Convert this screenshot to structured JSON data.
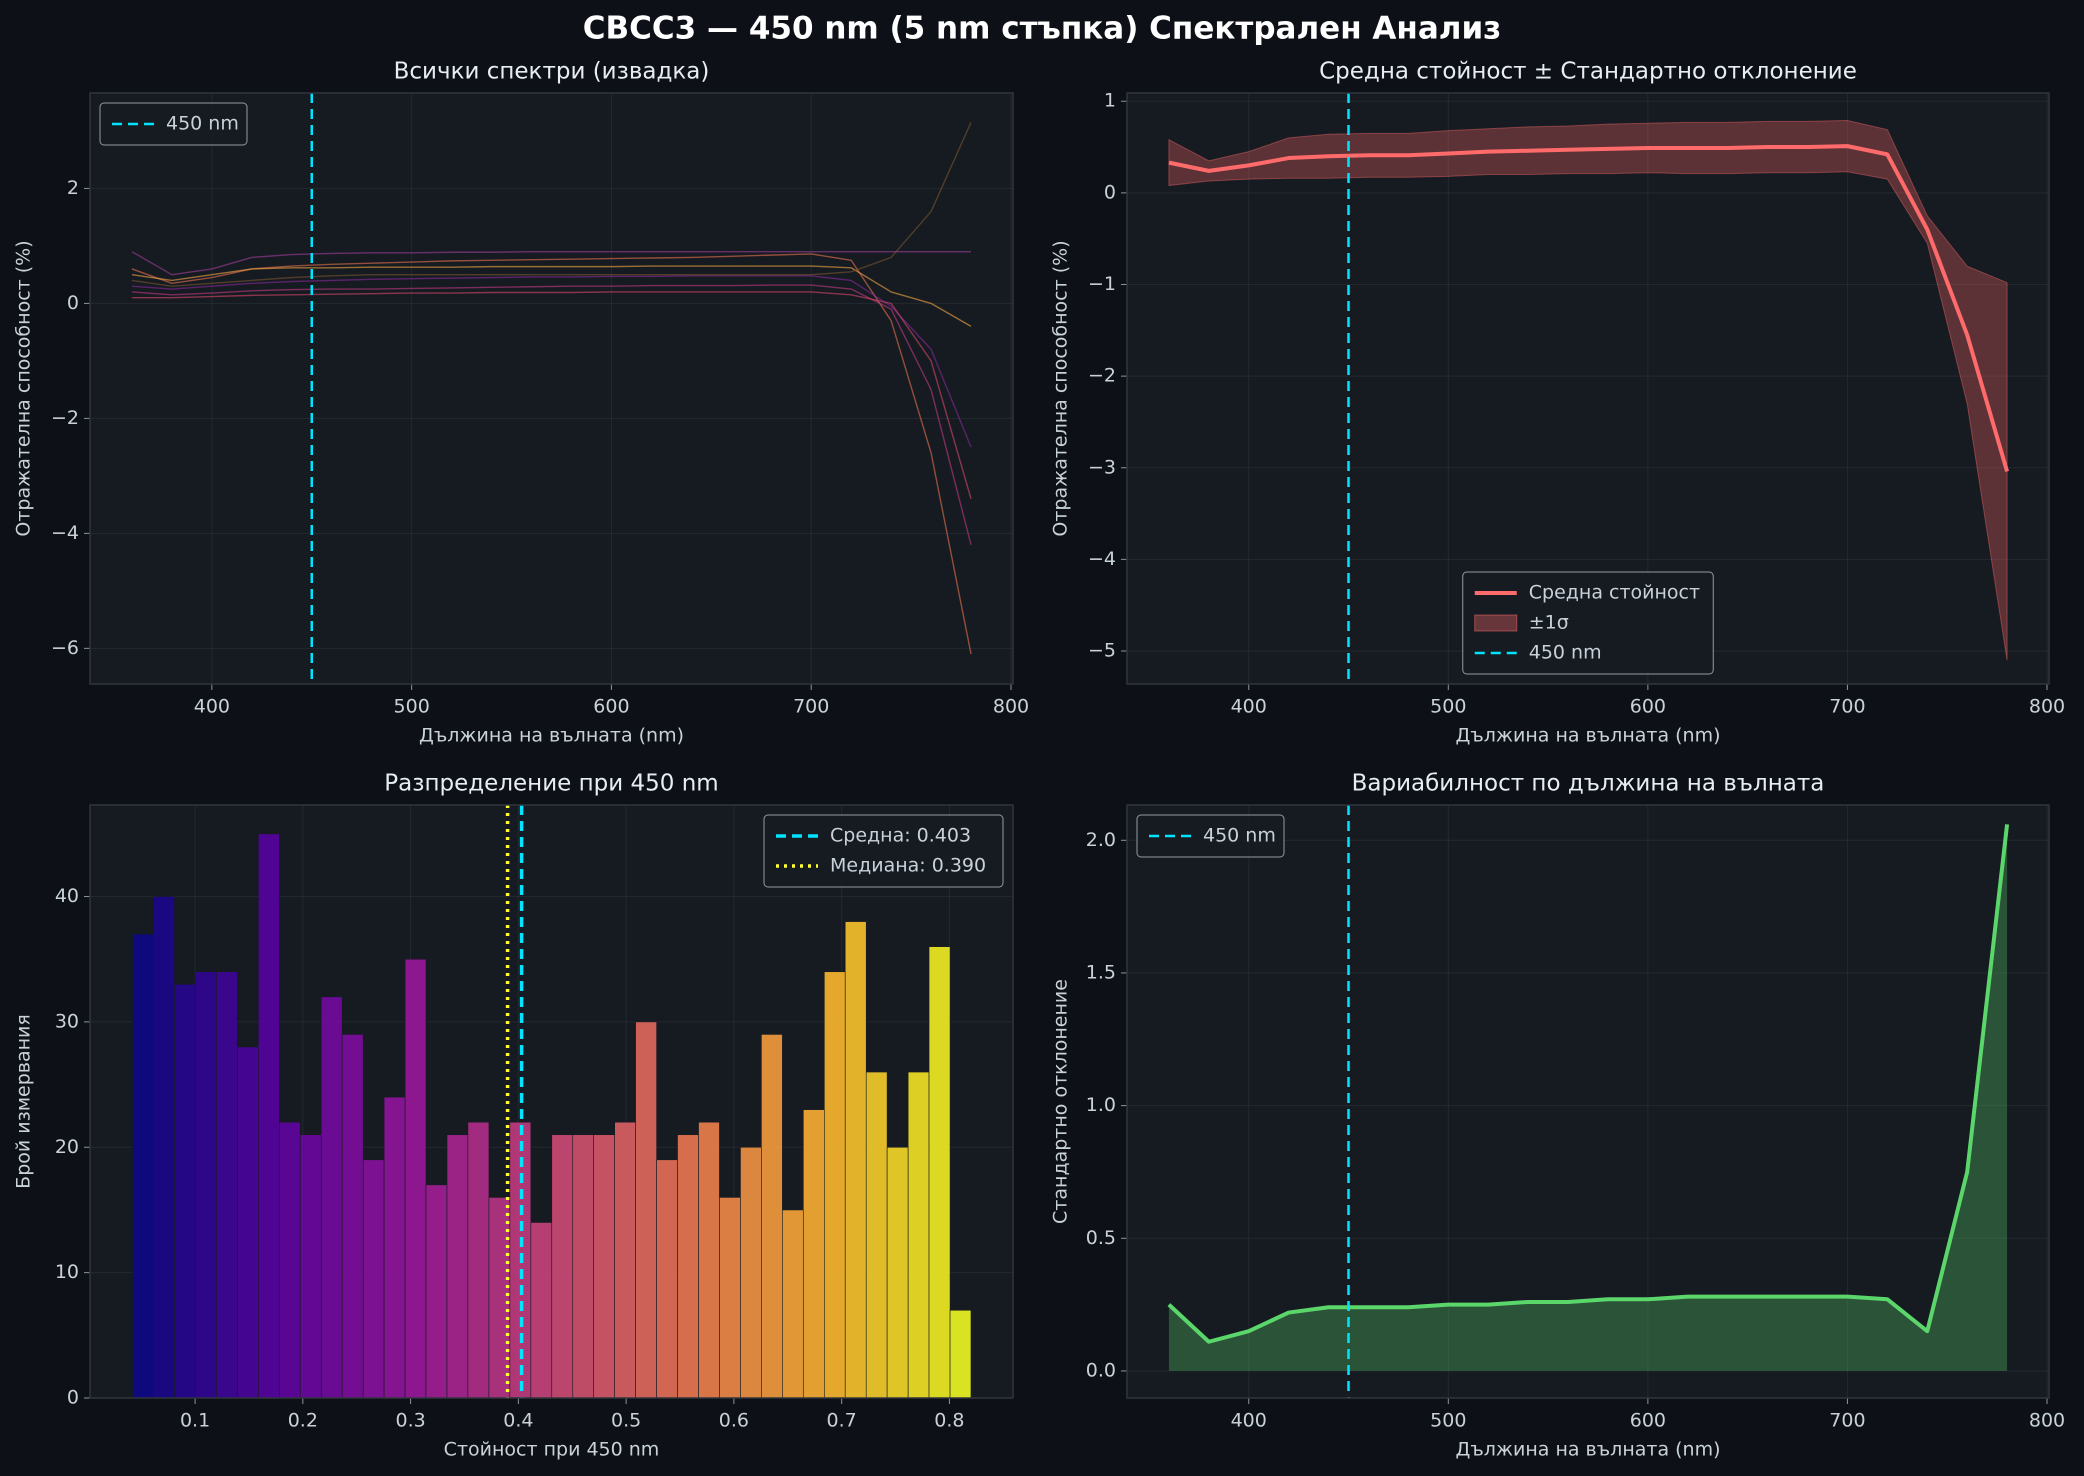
{
  "title": "CBCC3 — 450 nm (5 nm стъпка) Спектрален Анализ",
  "chart_data": [
    {
      "type": "line",
      "title": "Всички спектри (извадка)",
      "xlabel": "Дължина на вълната (nm)",
      "ylabel": "Отражателна способност (%)",
      "x": [
        360,
        380,
        400,
        420,
        440,
        460,
        480,
        500,
        520,
        540,
        560,
        580,
        600,
        620,
        640,
        660,
        680,
        700,
        720,
        740,
        760,
        780
      ],
      "series": [
        {
          "color": "#e8734f",
          "values": [
            0.6,
            0.35,
            0.45,
            0.6,
            0.65,
            0.68,
            0.7,
            0.72,
            0.74,
            0.75,
            0.76,
            0.77,
            0.78,
            0.79,
            0.8,
            0.82,
            0.84,
            0.86,
            0.75,
            -0.3,
            -2.6,
            -6.1
          ]
        },
        {
          "color": "#c13b82",
          "values": [
            0.2,
            0.15,
            0.18,
            0.22,
            0.24,
            0.25,
            0.25,
            0.26,
            0.27,
            0.28,
            0.29,
            0.3,
            0.3,
            0.31,
            0.31,
            0.31,
            0.32,
            0.32,
            0.25,
            -0.1,
            -1.5,
            -4.2
          ]
        },
        {
          "color": "#8b2a9b",
          "values": [
            0.3,
            0.25,
            0.3,
            0.35,
            0.38,
            0.4,
            0.42,
            0.43,
            0.44,
            0.45,
            0.46,
            0.46,
            0.47,
            0.47,
            0.48,
            0.48,
            0.48,
            0.48,
            0.4,
            -0.05,
            -0.8,
            -2.5
          ]
        },
        {
          "color": "#f5a742",
          "values": [
            0.5,
            0.4,
            0.5,
            0.6,
            0.62,
            0.62,
            0.63,
            0.63,
            0.63,
            0.64,
            0.64,
            0.64,
            0.64,
            0.65,
            0.65,
            0.65,
            0.65,
            0.65,
            0.62,
            0.2,
            0.0,
            -0.4
          ]
        },
        {
          "color": "#7a5530",
          "values": [
            0.4,
            0.3,
            0.35,
            0.4,
            0.45,
            0.48,
            0.5,
            0.5,
            0.5,
            0.5,
            0.5,
            0.5,
            0.5,
            0.5,
            0.5,
            0.5,
            0.5,
            0.5,
            0.55,
            0.8,
            1.6,
            3.15
          ]
        },
        {
          "color": "#d9476a",
          "values": [
            0.1,
            0.1,
            0.12,
            0.14,
            0.15,
            0.16,
            0.17,
            0.18,
            0.18,
            0.19,
            0.19,
            0.19,
            0.2,
            0.2,
            0.2,
            0.2,
            0.2,
            0.2,
            0.15,
            0.0,
            -1.0,
            -3.4
          ]
        },
        {
          "color": "#a0409a",
          "values": [
            0.9,
            0.5,
            0.6,
            0.8,
            0.85,
            0.87,
            0.88,
            0.88,
            0.89,
            0.89,
            0.9,
            0.9,
            0.9,
            0.9,
            0.9,
            0.9,
            0.9,
            0.9,
            0.9,
            0.9,
            0.9,
            0.9
          ]
        }
      ],
      "vlines": [
        {
          "value": 450,
          "label": "450 nm",
          "color": "#00e5ff",
          "style": "dashed"
        }
      ],
      "xlim": [
        339,
        801
      ],
      "xticks": [
        400,
        500,
        600,
        700,
        800
      ],
      "ylim": [
        -6.62,
        3.66
      ],
      "yticks": [
        {
          "value": -6,
          "label": "−6"
        },
        {
          "value": -4,
          "label": "−4"
        },
        {
          "value": -2,
          "label": "−2"
        },
        0,
        2
      ],
      "grid": true,
      "legend": "upper left"
    },
    {
      "type": "line",
      "title": "Средна стойност ± Стандартно отклонение",
      "xlabel": "Дължина на вълната (nm)",
      "ylabel": "Отражателна способност (%)",
      "x": [
        360,
        380,
        400,
        420,
        440,
        460,
        480,
        500,
        520,
        540,
        560,
        580,
        600,
        620,
        640,
        660,
        680,
        700,
        720,
        740,
        760,
        780
      ],
      "series": [
        {
          "name": "Средна стойност",
          "color": "#ff6b6b",
          "values": [
            0.33,
            0.24,
            0.3,
            0.38,
            0.4,
            0.41,
            0.41,
            0.43,
            0.45,
            0.46,
            0.47,
            0.48,
            0.49,
            0.49,
            0.49,
            0.5,
            0.5,
            0.51,
            0.42,
            -0.4,
            -1.55,
            -3.04
          ]
        }
      ],
      "band": {
        "name": "±1σ",
        "color": "#ff6b6b",
        "upper": [
          0.58,
          0.35,
          0.45,
          0.6,
          0.64,
          0.65,
          0.65,
          0.68,
          0.7,
          0.72,
          0.73,
          0.75,
          0.76,
          0.77,
          0.77,
          0.78,
          0.78,
          0.79,
          0.69,
          -0.25,
          -0.8,
          -0.98
        ],
        "lower": [
          0.08,
          0.13,
          0.15,
          0.16,
          0.16,
          0.17,
          0.17,
          0.18,
          0.2,
          0.2,
          0.21,
          0.21,
          0.22,
          0.21,
          0.21,
          0.22,
          0.22,
          0.23,
          0.15,
          -0.55,
          -2.3,
          -5.1
        ]
      },
      "vlines": [
        {
          "value": 450,
          "label": "450 nm",
          "color": "#00e5ff",
          "style": "dashed"
        }
      ],
      "xlim": [
        339,
        801
      ],
      "xticks": [
        400,
        500,
        600,
        700,
        800
      ],
      "ylim": [
        -5.36,
        1.09
      ],
      "yticks": [
        {
          "value": -5,
          "label": "−5"
        },
        {
          "value": -4,
          "label": "−4"
        },
        {
          "value": -3,
          "label": "−3"
        },
        {
          "value": -2,
          "label": "−2"
        },
        {
          "value": -1,
          "label": "−1"
        },
        0,
        1
      ],
      "grid": true,
      "legend": "lower center"
    },
    {
      "type": "histogram",
      "title": "Разпределение при 450 nm",
      "xlabel": "Стойност при 450 nm",
      "ylabel": "Брой измервания",
      "bins": [
        0.042,
        0.0615,
        0.0809,
        0.1004,
        0.1198,
        0.1393,
        0.1587,
        0.1782,
        0.1976,
        0.2171,
        0.2365,
        0.256,
        0.2754,
        0.2949,
        0.3143,
        0.3338,
        0.3532,
        0.3727,
        0.3921,
        0.4116,
        0.431,
        0.4505,
        0.4699,
        0.4894,
        0.5088,
        0.5283,
        0.5477,
        0.5672,
        0.5866,
        0.6061,
        0.6255,
        0.645,
        0.6644,
        0.6839,
        0.7033,
        0.7228,
        0.7422,
        0.7617,
        0.7811,
        0.8006,
        0.82
      ],
      "counts": [
        37,
        40,
        33,
        34,
        34,
        28,
        45,
        22,
        21,
        32,
        29,
        19,
        24,
        35,
        17,
        21,
        22,
        16,
        22,
        14,
        21,
        21,
        21,
        22,
        30,
        19,
        21,
        22,
        16,
        20,
        29,
        15,
        23,
        34,
        38,
        26,
        20,
        26,
        36,
        7
      ],
      "colormap": "plasma",
      "vlines": [
        {
          "value": 0.403,
          "label": "Средна: 0.403",
          "color": "#00e5ff",
          "style": "dashed"
        },
        {
          "value": 0.39,
          "label": "Медиана: 0.390",
          "color": "#ffff33",
          "style": "dotted"
        }
      ],
      "xlim": [
        0.0025,
        0.859
      ],
      "xticks": [
        0.1,
        0.2,
        0.3,
        0.4,
        0.5,
        0.6,
        0.7,
        0.8
      ],
      "ylim": [
        0,
        47.3
      ],
      "yticks": [
        0,
        10,
        20,
        30,
        40
      ],
      "grid": true,
      "legend": "upper right"
    },
    {
      "type": "line",
      "title": "Вариабилност по дължина на вълната",
      "xlabel": "Дължина на вълната (nm)",
      "ylabel": "Стандартно отклонение",
      "x": [
        360,
        380,
        400,
        420,
        440,
        460,
        480,
        500,
        520,
        540,
        560,
        580,
        600,
        620,
        640,
        660,
        680,
        700,
        720,
        740,
        760,
        780
      ],
      "series": [
        {
          "color": "#5bd66b",
          "fill": true,
          "values": [
            0.25,
            0.11,
            0.15,
            0.22,
            0.24,
            0.24,
            0.24,
            0.25,
            0.25,
            0.26,
            0.26,
            0.27,
            0.27,
            0.28,
            0.28,
            0.28,
            0.28,
            0.28,
            0.27,
            0.15,
            0.75,
            2.06
          ]
        }
      ],
      "vlines": [
        {
          "value": 450,
          "label": "450 nm",
          "color": "#00e5ff",
          "style": "dashed"
        }
      ],
      "xlim": [
        339,
        801
      ],
      "xticks": [
        400,
        500,
        600,
        700,
        800
      ],
      "ylim": [
        -0.102,
        2.133
      ],
      "yticks": [
        {
          "value": 0,
          "label": "0.0"
        },
        0.5,
        {
          "value": 1,
          "label": "1.0"
        },
        1.5,
        {
          "value": 2,
          "label": "2.0"
        }
      ],
      "grid": true,
      "legend": "upper left"
    }
  ]
}
